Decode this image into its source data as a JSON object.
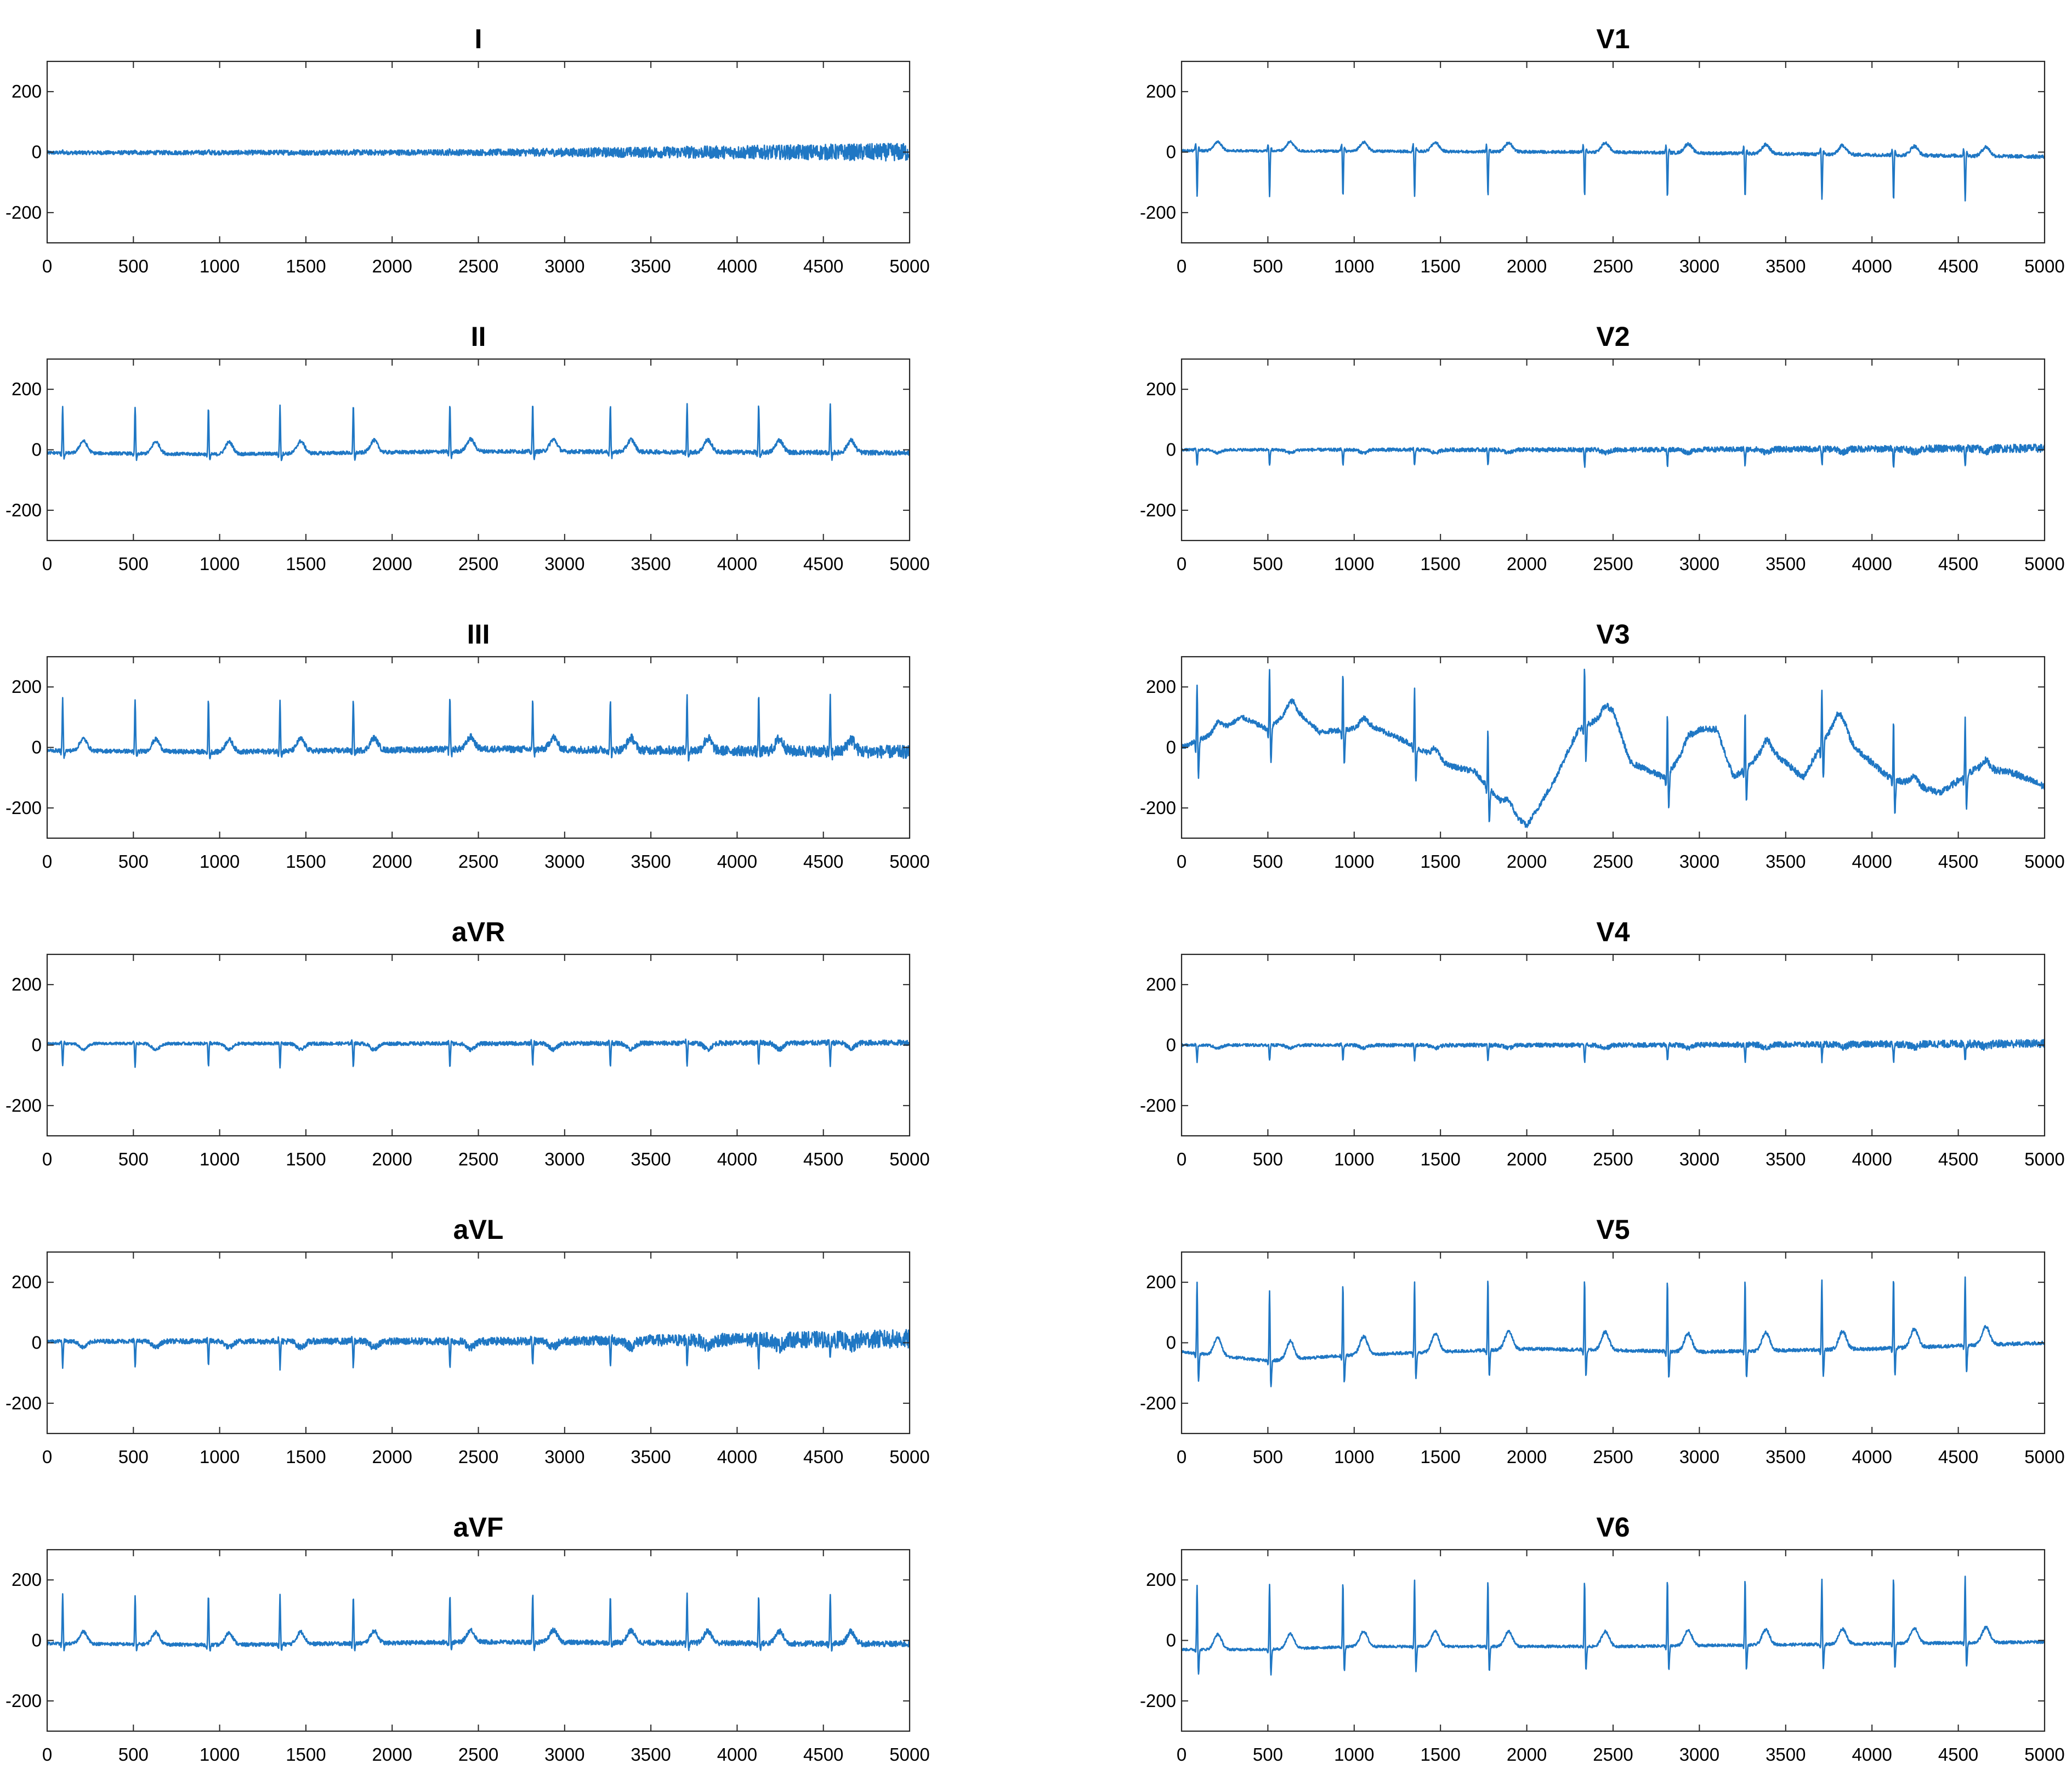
{
  "figure": {
    "trace_color": "#1f77c4",
    "axis_color": "#262626",
    "background": "#ffffff"
  },
  "chart_data": [
    {
      "type": "line",
      "title": "I",
      "xlim": [
        0,
        5000
      ],
      "ylim": [
        -300,
        300
      ],
      "xticks": [
        0,
        500,
        1000,
        1500,
        2000,
        2500,
        3000,
        3500,
        4000,
        4500,
        5000
      ],
      "yticks": [
        -200,
        0,
        200
      ],
      "beats": [
        90,
        510,
        935,
        1350,
        1775,
        2335,
        2815,
        3265,
        3710,
        4125,
        4540
      ],
      "baseline": [
        [
          0,
          -2
        ],
        [
          2500,
          -1
        ],
        [
          5000,
          0
        ]
      ],
      "noise": [
        [
          0,
          6
        ],
        [
          2500,
          10
        ],
        [
          5000,
          30
        ]
      ],
      "wave": {
        "q": 0,
        "r": 5,
        "s": 0,
        "t": 0
      },
      "grid": false
    },
    {
      "type": "line",
      "title": "II",
      "xlim": [
        0,
        5000
      ],
      "ylim": [
        -300,
        300
      ],
      "xticks": [
        0,
        500,
        1000,
        1500,
        2000,
        2500,
        3000,
        3500,
        4000,
        4500,
        5000
      ],
      "yticks": [
        -200,
        0,
        200
      ],
      "beats": [
        90,
        510,
        935,
        1350,
        1775,
        2335,
        2815,
        3265,
        3710,
        4125,
        4540
      ],
      "baseline": [
        [
          0,
          -10
        ],
        [
          1000,
          -15
        ],
        [
          2500,
          -5
        ],
        [
          5000,
          -10
        ]
      ],
      "noise": [
        [
          0,
          5
        ],
        [
          5000,
          8
        ]
      ],
      "wave": {
        "q": -15,
        "r": 165,
        "s": -25,
        "t": 40
      },
      "grid": false
    },
    {
      "type": "line",
      "title": "III",
      "xlim": [
        0,
        5000
      ],
      "ylim": [
        -300,
        300
      ],
      "xticks": [
        0,
        500,
        1000,
        1500,
        2000,
        2500,
        3000,
        3500,
        4000,
        4500,
        5000
      ],
      "yticks": [
        -200,
        0,
        200
      ],
      "beats": [
        90,
        510,
        935,
        1350,
        1775,
        2335,
        2815,
        3265,
        3710,
        4125,
        4540
      ],
      "baseline": [
        [
          0,
          -10
        ],
        [
          1000,
          -15
        ],
        [
          2500,
          -5
        ],
        [
          5000,
          -15
        ]
      ],
      "noise": [
        [
          0,
          6
        ],
        [
          3000,
          12
        ],
        [
          5000,
          22
        ]
      ],
      "wave": {
        "q": -15,
        "r": 180,
        "s": -25,
        "t": 40
      },
      "grid": false
    },
    {
      "type": "line",
      "title": "aVR",
      "xlim": [
        0,
        5000
      ],
      "ylim": [
        -300,
        300
      ],
      "xticks": [
        0,
        500,
        1000,
        1500,
        2000,
        2500,
        3000,
        3500,
        4000,
        4500,
        5000
      ],
      "yticks": [
        -200,
        0,
        200
      ],
      "beats": [
        90,
        510,
        935,
        1350,
        1775,
        2335,
        2815,
        3265,
        3710,
        4125,
        4540
      ],
      "baseline": [
        [
          0,
          5
        ],
        [
          2500,
          5
        ],
        [
          5000,
          8
        ]
      ],
      "noise": [
        [
          0,
          4
        ],
        [
          5000,
          9
        ]
      ],
      "wave": {
        "q": 10,
        "r": -80,
        "s": 5,
        "t": -20
      },
      "grid": false
    },
    {
      "type": "line",
      "title": "aVL",
      "xlim": [
        0,
        5000
      ],
      "ylim": [
        -300,
        300
      ],
      "xticks": [
        0,
        500,
        1000,
        1500,
        2000,
        2500,
        3000,
        3500,
        4000,
        4500,
        5000
      ],
      "yticks": [
        -200,
        0,
        200
      ],
      "beats": [
        90,
        510,
        935,
        1350,
        1775,
        2335,
        2815,
        3265,
        3710,
        4125,
        4540
      ],
      "baseline": [
        [
          0,
          5
        ],
        [
          2500,
          5
        ],
        [
          5000,
          12
        ]
      ],
      "noise": [
        [
          0,
          6
        ],
        [
          3000,
          14
        ],
        [
          5000,
          32
        ]
      ],
      "wave": {
        "q": 10,
        "r": -90,
        "s": 5,
        "t": -20
      },
      "grid": false
    },
    {
      "type": "line",
      "title": "aVF",
      "xlim": [
        0,
        5000
      ],
      "ylim": [
        -300,
        300
      ],
      "xticks": [
        0,
        500,
        1000,
        1500,
        2000,
        2500,
        3000,
        3500,
        4000,
        4500,
        5000
      ],
      "yticks": [
        -200,
        0,
        200
      ],
      "beats": [
        90,
        510,
        935,
        1350,
        1775,
        2335,
        2815,
        3265,
        3710,
        4125,
        4540
      ],
      "baseline": [
        [
          0,
          -10
        ],
        [
          1000,
          -15
        ],
        [
          2500,
          -5
        ],
        [
          5000,
          -12
        ]
      ],
      "noise": [
        [
          0,
          5
        ],
        [
          5000,
          10
        ]
      ],
      "wave": {
        "q": -15,
        "r": 170,
        "s": -25,
        "t": 40
      },
      "grid": false
    },
    {
      "type": "line",
      "title": "V1",
      "xlim": [
        0,
        5000
      ],
      "ylim": [
        -300,
        300
      ],
      "xticks": [
        0,
        500,
        1000,
        1500,
        2000,
        2500,
        3000,
        3500,
        4000,
        4500,
        5000
      ],
      "yticks": [
        -200,
        0,
        200
      ],
      "beats": [
        90,
        510,
        935,
        1350,
        1775,
        2335,
        2815,
        3265,
        3710,
        4125,
        4540
      ],
      "baseline": [
        [
          0,
          5
        ],
        [
          2500,
          0
        ],
        [
          5000,
          -15
        ]
      ],
      "noise": [
        [
          0,
          4
        ],
        [
          5000,
          6
        ]
      ],
      "wave": {
        "q": 30,
        "r": -160,
        "s": 15,
        "t": 30
      },
      "grid": false
    },
    {
      "type": "line",
      "title": "V2",
      "xlim": [
        0,
        5000
      ],
      "ylim": [
        -300,
        300
      ],
      "xticks": [
        0,
        500,
        1000,
        1500,
        2000,
        2500,
        3000,
        3500,
        4000,
        4500,
        5000
      ],
      "yticks": [
        -200,
        0,
        200
      ],
      "beats": [
        90,
        510,
        935,
        1350,
        1775,
        2335,
        2815,
        3265,
        3710,
        4125,
        4540
      ],
      "baseline": [
        [
          0,
          0
        ],
        [
          2500,
          0
        ],
        [
          5000,
          5
        ]
      ],
      "noise": [
        [
          0,
          4
        ],
        [
          3000,
          8
        ],
        [
          5000,
          14
        ]
      ],
      "wave": {
        "q": 5,
        "r": -55,
        "s": 0,
        "t": -10
      },
      "grid": false
    },
    {
      "type": "line",
      "title": "V3",
      "xlim": [
        0,
        5000
      ],
      "ylim": [
        -300,
        300
      ],
      "xticks": [
        0,
        500,
        1000,
        1500,
        2000,
        2500,
        3000,
        3500,
        4000,
        4500,
        5000
      ],
      "yticks": [
        -200,
        0,
        200
      ],
      "beats": [
        90,
        510,
        935,
        1350,
        1775,
        2335,
        2815,
        3265,
        3710,
        4125,
        4540
      ],
      "baseline": [
        [
          0,
          0
        ],
        [
          200,
          50
        ],
        [
          350,
          100
        ],
        [
          500,
          60
        ],
        [
          650,
          130
        ],
        [
          800,
          50
        ],
        [
          950,
          60
        ],
        [
          1100,
          70
        ],
        [
          1300,
          20
        ],
        [
          1550,
          -60
        ],
        [
          1700,
          -80
        ],
        [
          1850,
          -180
        ],
        [
          2000,
          -260
        ],
        [
          2150,
          -120
        ],
        [
          2300,
          60
        ],
        [
          2500,
          120
        ],
        [
          2600,
          -50
        ],
        [
          2800,
          -100
        ],
        [
          3000,
          60
        ],
        [
          3100,
          60
        ],
        [
          3200,
          -100
        ],
        [
          3400,
          0
        ],
        [
          3600,
          -100
        ],
        [
          3800,
          100
        ],
        [
          3900,
          0
        ],
        [
          4100,
          -100
        ],
        [
          4400,
          -150
        ],
        [
          4600,
          -70
        ],
        [
          4800,
          -80
        ],
        [
          5000,
          -130
        ]
      ],
      "noise": [
        [
          0,
          8
        ],
        [
          5000,
          12
        ]
      ],
      "wave": {
        "q": -40,
        "r": 230,
        "s": -130,
        "t": 30
      },
      "grid": false
    },
    {
      "type": "line",
      "title": "V4",
      "xlim": [
        0,
        5000
      ],
      "ylim": [
        -300,
        300
      ],
      "xticks": [
        0,
        500,
        1000,
        1500,
        2000,
        2500,
        3000,
        3500,
        4000,
        4500,
        5000
      ],
      "yticks": [
        -200,
        0,
        200
      ],
      "beats": [
        90,
        510,
        935,
        1350,
        1775,
        2335,
        2815,
        3265,
        3710,
        4125,
        4540
      ],
      "baseline": [
        [
          0,
          0
        ],
        [
          2500,
          0
        ],
        [
          5000,
          5
        ]
      ],
      "noise": [
        [
          0,
          4
        ],
        [
          3000,
          8
        ],
        [
          5000,
          14
        ]
      ],
      "wave": {
        "q": 5,
        "r": -55,
        "s": 0,
        "t": -10
      },
      "grid": false
    },
    {
      "type": "line",
      "title": "V5",
      "xlim": [
        0,
        5000
      ],
      "ylim": [
        -300,
        300
      ],
      "xticks": [
        0,
        500,
        1000,
        1500,
        2000,
        2500,
        3000,
        3500,
        4000,
        4500,
        5000
      ],
      "yticks": [
        -200,
        0,
        200
      ],
      "beats": [
        90,
        510,
        935,
        1350,
        1775,
        2335,
        2815,
        3265,
        3710,
        4125,
        4540
      ],
      "baseline": [
        [
          0,
          -30
        ],
        [
          500,
          -60
        ],
        [
          1000,
          -40
        ],
        [
          2000,
          -20
        ],
        [
          3000,
          -30
        ],
        [
          4000,
          -20
        ],
        [
          5000,
          0
        ]
      ],
      "noise": [
        [
          0,
          5
        ],
        [
          5000,
          6
        ]
      ],
      "wave": {
        "q": -20,
        "r": 260,
        "s": -100,
        "t": 60
      },
      "grid": false
    },
    {
      "type": "line",
      "title": "V6",
      "xlim": [
        0,
        5000
      ],
      "ylim": [
        -300,
        300
      ],
      "xticks": [
        0,
        500,
        1000,
        1500,
        2000,
        2500,
        3000,
        3500,
        4000,
        4500,
        5000
      ],
      "yticks": [
        -200,
        0,
        200
      ],
      "beats": [
        90,
        510,
        935,
        1350,
        1775,
        2335,
        2815,
        3265,
        3710,
        4125,
        4540
      ],
      "baseline": [
        [
          0,
          -30
        ],
        [
          500,
          -30
        ],
        [
          1000,
          -20
        ],
        [
          2500,
          -20
        ],
        [
          5000,
          -5
        ]
      ],
      "noise": [
        [
          0,
          4
        ],
        [
          5000,
          5
        ]
      ],
      "wave": {
        "q": -15,
        "r": 240,
        "s": -90,
        "t": 50
      },
      "grid": false
    }
  ]
}
